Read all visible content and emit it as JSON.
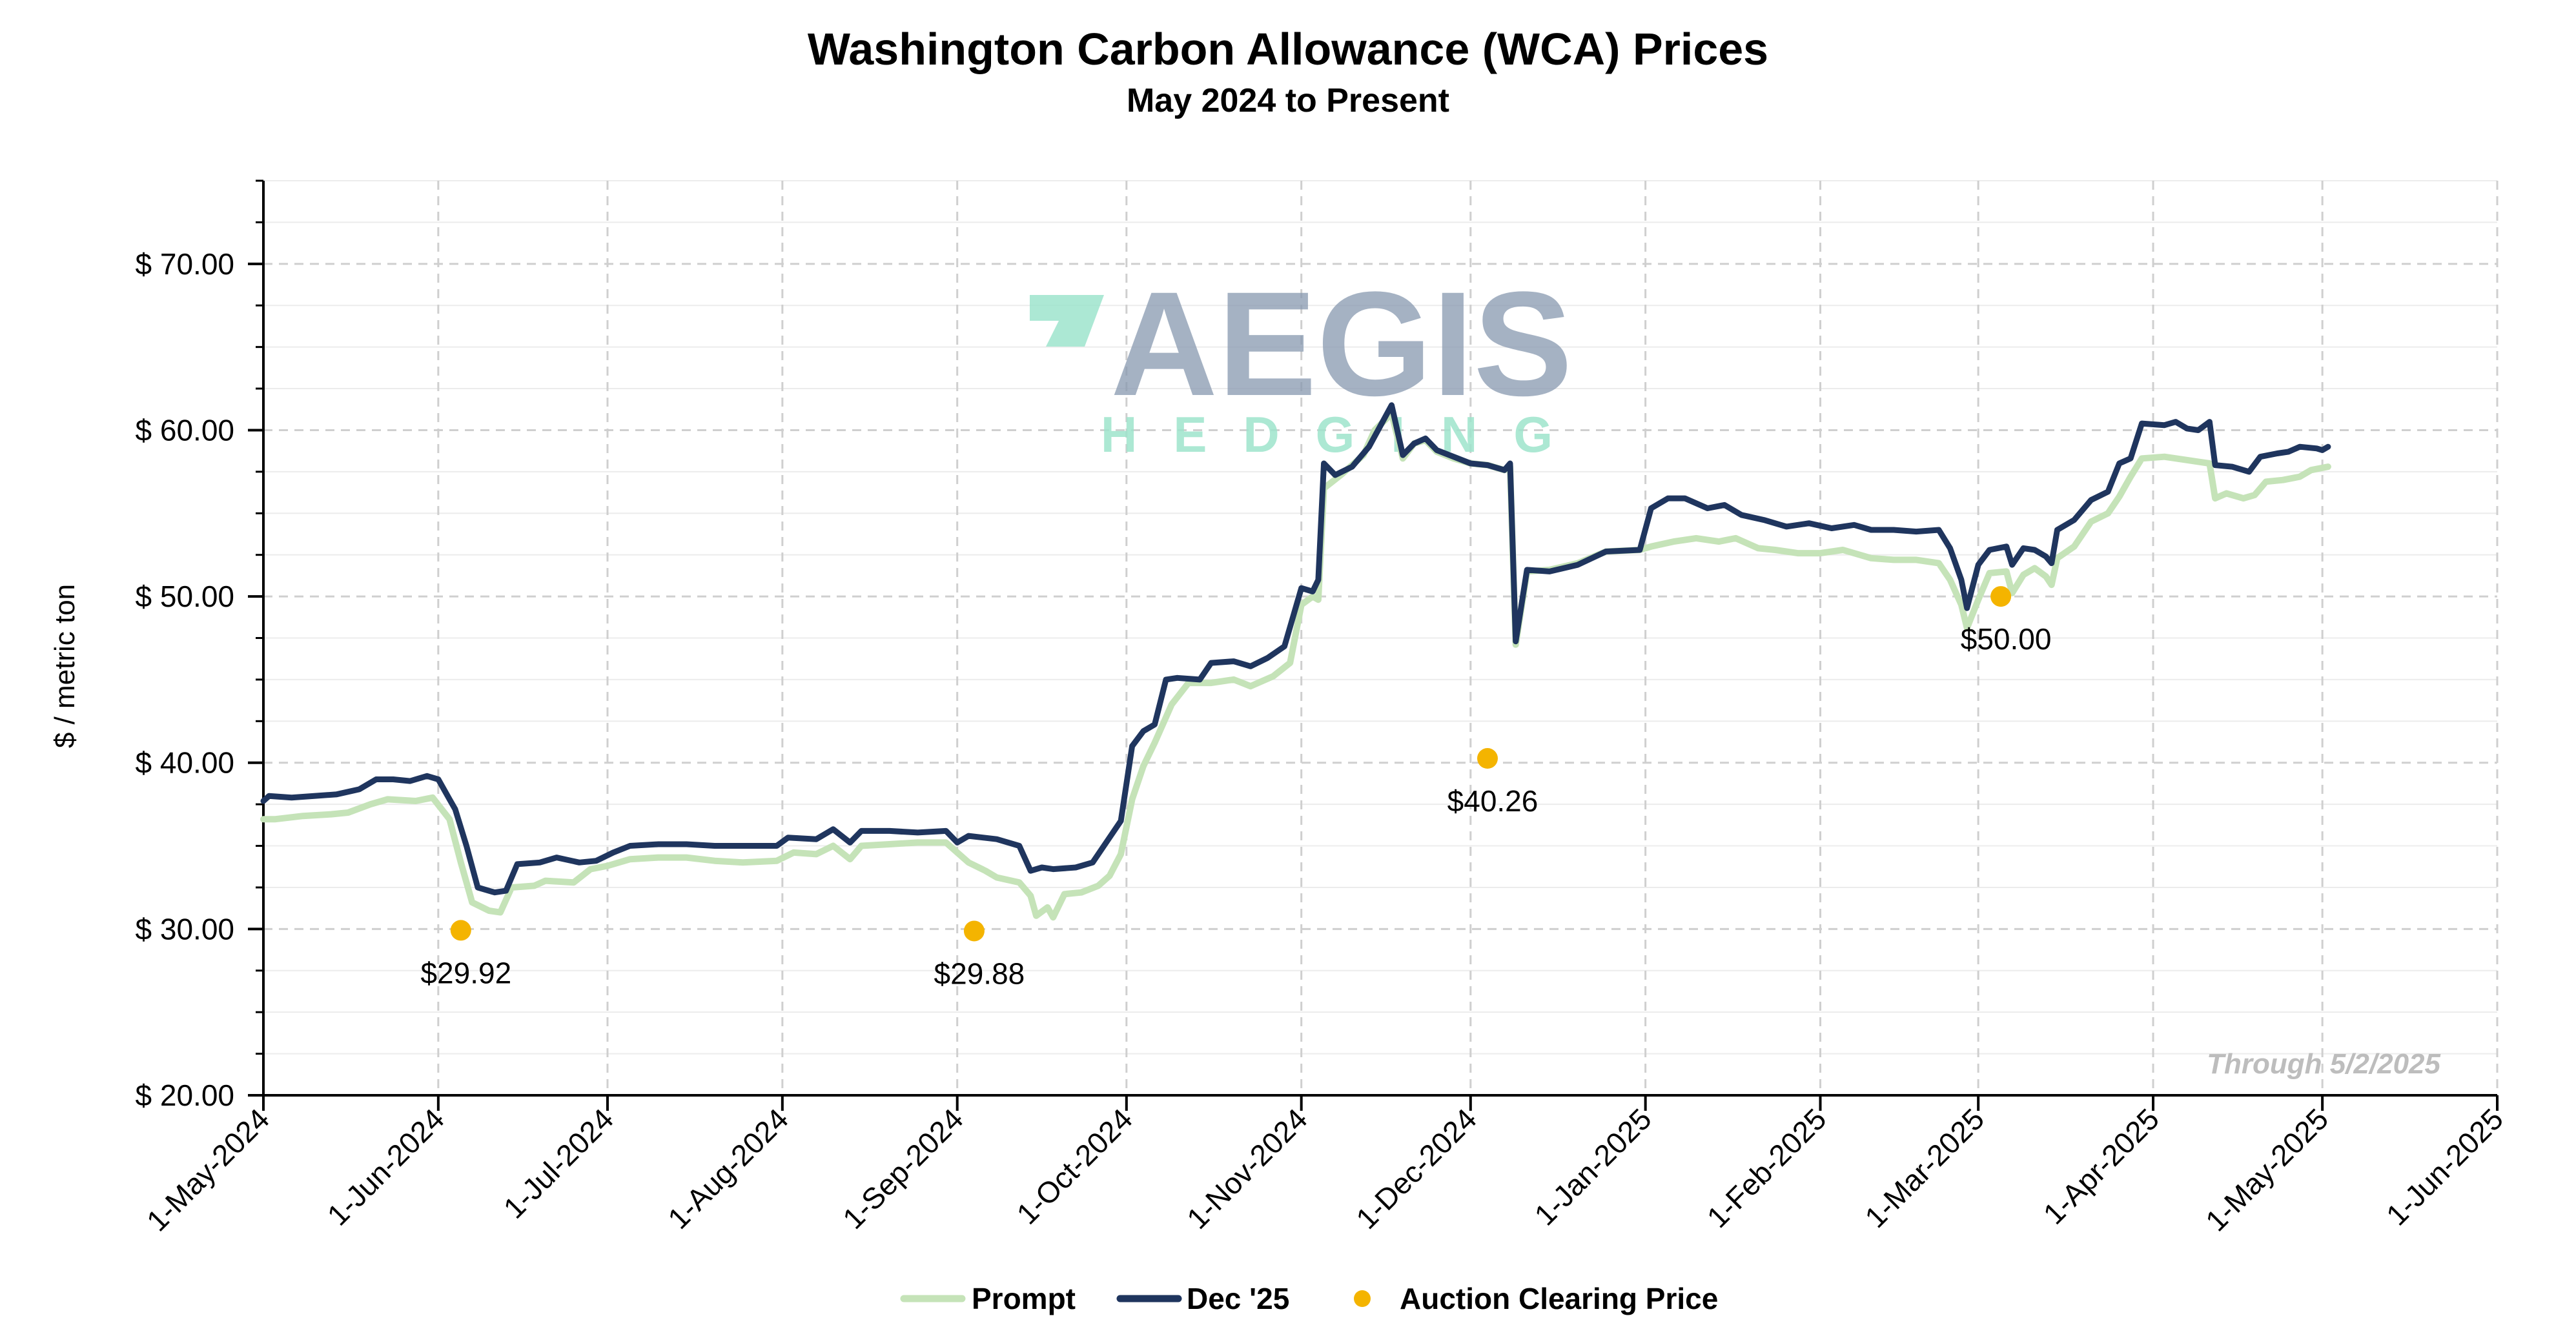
{
  "colors": {
    "prompt": "#c5e3b8",
    "dec25": "#1f355e",
    "auction": "#f4b400",
    "grid": "#d9d9d9",
    "watermark_text": "#8899b0",
    "watermark_accent": "#9ee4cc"
  },
  "watermark": {
    "line1": "AEGIS",
    "line2": "HEDGING"
  },
  "chart_data": {
    "type": "line",
    "title": "Washington Carbon Allowance (WCA) Prices",
    "subtitle": "May 2024 to Present",
    "ylabel": "$ / metric ton",
    "ylim": [
      20,
      75
    ],
    "xlim": [
      "2024-05-01",
      "2025-06-01"
    ],
    "grid": true,
    "legend_position": "bottom",
    "note": "Through 5/2/2025",
    "x_tick_labels": [
      "1-May-2024",
      "1-Jun-2024",
      "1-Jul-2024",
      "1-Aug-2024",
      "1-Sep-2024",
      "1-Oct-2024",
      "1-Nov-2024",
      "1-Dec-2024",
      "1-Jan-2025",
      "1-Feb-2025",
      "1-Mar-2025",
      "1-Apr-2025",
      "1-May-2025",
      "1-Jun-2025"
    ],
    "x_tick_dates": [
      "2024-05-01",
      "2024-06-01",
      "2024-07-01",
      "2024-08-01",
      "2024-09-01",
      "2024-10-01",
      "2024-11-01",
      "2024-12-01",
      "2025-01-01",
      "2025-02-01",
      "2025-03-01",
      "2025-04-01",
      "2025-05-01",
      "2025-06-01"
    ],
    "y_ticks": [
      20,
      30,
      40,
      50,
      60,
      70
    ],
    "y_tick_labels": [
      "$ 20.00",
      "$ 30.00",
      "$ 40.00",
      "$ 50.00",
      "$ 60.00",
      "$ 70.00"
    ],
    "series": [
      {
        "name": "Prompt",
        "points": [
          [
            "2024-05-01",
            36.6
          ],
          [
            "2024-05-03",
            36.6
          ],
          [
            "2024-05-08",
            36.8
          ],
          [
            "2024-05-13",
            36.9
          ],
          [
            "2024-05-16",
            37.0
          ],
          [
            "2024-05-20",
            37.5
          ],
          [
            "2024-05-23",
            37.8
          ],
          [
            "2024-05-28",
            37.7
          ],
          [
            "2024-05-31",
            37.9
          ],
          [
            "2024-06-03",
            36.6
          ],
          [
            "2024-06-05",
            34.0
          ],
          [
            "2024-06-07",
            31.6
          ],
          [
            "2024-06-10",
            31.1
          ],
          [
            "2024-06-12",
            31.0
          ],
          [
            "2024-06-14",
            32.5
          ],
          [
            "2024-06-18",
            32.6
          ],
          [
            "2024-06-20",
            32.9
          ],
          [
            "2024-06-25",
            32.8
          ],
          [
            "2024-06-28",
            33.6
          ],
          [
            "2024-07-01",
            33.8
          ],
          [
            "2024-07-05",
            34.2
          ],
          [
            "2024-07-10",
            34.3
          ],
          [
            "2024-07-15",
            34.3
          ],
          [
            "2024-07-20",
            34.1
          ],
          [
            "2024-07-25",
            34.0
          ],
          [
            "2024-07-31",
            34.1
          ],
          [
            "2024-08-03",
            34.6
          ],
          [
            "2024-08-07",
            34.5
          ],
          [
            "2024-08-10",
            35.0
          ],
          [
            "2024-08-13",
            34.2
          ],
          [
            "2024-08-15",
            35.0
          ],
          [
            "2024-08-20",
            35.1
          ],
          [
            "2024-08-25",
            35.2
          ],
          [
            "2024-08-30",
            35.2
          ],
          [
            "2024-09-01",
            34.6
          ],
          [
            "2024-09-03",
            34.0
          ],
          [
            "2024-09-06",
            33.5
          ],
          [
            "2024-09-08",
            33.1
          ],
          [
            "2024-09-12",
            32.8
          ],
          [
            "2024-09-14",
            32.0
          ],
          [
            "2024-09-15",
            30.8
          ],
          [
            "2024-09-17",
            31.3
          ],
          [
            "2024-09-18",
            30.7
          ],
          [
            "2024-09-20",
            32.1
          ],
          [
            "2024-09-23",
            32.2
          ],
          [
            "2024-09-26",
            32.6
          ],
          [
            "2024-09-28",
            33.2
          ],
          [
            "2024-09-30",
            34.5
          ],
          [
            "2024-10-02",
            37.8
          ],
          [
            "2024-10-04",
            39.8
          ],
          [
            "2024-10-06",
            41.2
          ],
          [
            "2024-10-09",
            43.5
          ],
          [
            "2024-10-12",
            44.8
          ],
          [
            "2024-10-16",
            44.8
          ],
          [
            "2024-10-20",
            45.0
          ],
          [
            "2024-10-23",
            44.6
          ],
          [
            "2024-10-27",
            45.2
          ],
          [
            "2024-10-30",
            46.0
          ],
          [
            "2024-11-01",
            49.5
          ],
          [
            "2024-11-03",
            50.0
          ],
          [
            "2024-11-04",
            49.8
          ],
          [
            "2024-11-05",
            56.5
          ],
          [
            "2024-11-08",
            57.3
          ],
          [
            "2024-11-12",
            58.5
          ],
          [
            "2024-11-14",
            60.0
          ],
          [
            "2024-11-17",
            61.0
          ],
          [
            "2024-11-19",
            58.3
          ],
          [
            "2024-11-21",
            59.2
          ],
          [
            "2024-11-23",
            59.4
          ],
          [
            "2024-11-25",
            58.7
          ],
          [
            "2024-11-28",
            58.3
          ],
          [
            "2024-12-01",
            58.0
          ],
          [
            "2024-12-04",
            57.9
          ],
          [
            "2024-12-07",
            57.6
          ],
          [
            "2024-12-08",
            57.8
          ],
          [
            "2024-12-09",
            47.1
          ],
          [
            "2024-12-11",
            51.5
          ],
          [
            "2024-12-15",
            51.6
          ],
          [
            "2024-12-20",
            52.0
          ],
          [
            "2024-12-25",
            52.7
          ],
          [
            "2024-12-31",
            52.8
          ],
          [
            "2025-01-02",
            53.0
          ],
          [
            "2025-01-06",
            53.3
          ],
          [
            "2025-01-10",
            53.5
          ],
          [
            "2025-01-14",
            53.3
          ],
          [
            "2025-01-17",
            53.5
          ],
          [
            "2025-01-21",
            52.9
          ],
          [
            "2025-01-24",
            52.8
          ],
          [
            "2025-01-28",
            52.6
          ],
          [
            "2025-02-01",
            52.6
          ],
          [
            "2025-02-05",
            52.8
          ],
          [
            "2025-02-10",
            52.3
          ],
          [
            "2025-02-14",
            52.2
          ],
          [
            "2025-02-18",
            52.2
          ],
          [
            "2025-02-22",
            52.0
          ],
          [
            "2025-02-24",
            51.0
          ],
          [
            "2025-02-26",
            49.5
          ],
          [
            "2025-02-27",
            48.1
          ],
          [
            "2025-03-01",
            49.8
          ],
          [
            "2025-03-03",
            51.4
          ],
          [
            "2025-03-06",
            51.5
          ],
          [
            "2025-03-07",
            50.2
          ],
          [
            "2025-03-09",
            51.3
          ],
          [
            "2025-03-11",
            51.7
          ],
          [
            "2025-03-13",
            51.2
          ],
          [
            "2025-03-14",
            50.7
          ],
          [
            "2025-03-15",
            52.3
          ],
          [
            "2025-03-18",
            53.0
          ],
          [
            "2025-03-21",
            54.5
          ],
          [
            "2025-03-24",
            55.0
          ],
          [
            "2025-03-26",
            56.0
          ],
          [
            "2025-03-28",
            57.2
          ],
          [
            "2025-03-30",
            58.3
          ],
          [
            "2025-04-03",
            58.4
          ],
          [
            "2025-04-07",
            58.2
          ],
          [
            "2025-04-09",
            58.1
          ],
          [
            "2025-04-11",
            58.0
          ],
          [
            "2025-04-12",
            55.9
          ],
          [
            "2025-04-14",
            56.2
          ],
          [
            "2025-04-17",
            55.9
          ],
          [
            "2025-04-19",
            56.1
          ],
          [
            "2025-04-21",
            56.9
          ],
          [
            "2025-04-24",
            57.0
          ],
          [
            "2025-04-27",
            57.2
          ],
          [
            "2025-04-29",
            57.6
          ],
          [
            "2025-05-02",
            57.8
          ]
        ]
      },
      {
        "name": "Dec '25",
        "points": [
          [
            "2024-05-01",
            37.7
          ],
          [
            "2024-05-02",
            38.0
          ],
          [
            "2024-05-06",
            37.9
          ],
          [
            "2024-05-10",
            38.0
          ],
          [
            "2024-05-14",
            38.1
          ],
          [
            "2024-05-18",
            38.4
          ],
          [
            "2024-05-21",
            39.0
          ],
          [
            "2024-05-24",
            39.0
          ],
          [
            "2024-05-27",
            38.9
          ],
          [
            "2024-05-30",
            39.2
          ],
          [
            "2024-06-01",
            39.0
          ],
          [
            "2024-06-03",
            37.8
          ],
          [
            "2024-06-04",
            37.2
          ],
          [
            "2024-06-06",
            35.0
          ],
          [
            "2024-06-08",
            32.5
          ],
          [
            "2024-06-11",
            32.2
          ],
          [
            "2024-06-13",
            32.3
          ],
          [
            "2024-06-15",
            33.9
          ],
          [
            "2024-06-19",
            34.0
          ],
          [
            "2024-06-22",
            34.3
          ],
          [
            "2024-06-26",
            34.0
          ],
          [
            "2024-06-29",
            34.1
          ],
          [
            "2024-07-02",
            34.6
          ],
          [
            "2024-07-05",
            35.0
          ],
          [
            "2024-07-10",
            35.1
          ],
          [
            "2024-07-15",
            35.1
          ],
          [
            "2024-07-20",
            35.0
          ],
          [
            "2024-07-25",
            35.0
          ],
          [
            "2024-07-31",
            35.0
          ],
          [
            "2024-08-02",
            35.5
          ],
          [
            "2024-08-07",
            35.4
          ],
          [
            "2024-08-10",
            36.0
          ],
          [
            "2024-08-13",
            35.2
          ],
          [
            "2024-08-15",
            35.9
          ],
          [
            "2024-08-20",
            35.9
          ],
          [
            "2024-08-25",
            35.8
          ],
          [
            "2024-08-30",
            35.9
          ],
          [
            "2024-09-01",
            35.2
          ],
          [
            "2024-09-03",
            35.6
          ],
          [
            "2024-09-08",
            35.4
          ],
          [
            "2024-09-12",
            35.0
          ],
          [
            "2024-09-14",
            33.5
          ],
          [
            "2024-09-16",
            33.7
          ],
          [
            "2024-09-18",
            33.6
          ],
          [
            "2024-09-22",
            33.7
          ],
          [
            "2024-09-25",
            34.0
          ],
          [
            "2024-09-27",
            35.0
          ],
          [
            "2024-09-30",
            36.5
          ],
          [
            "2024-10-02",
            41.0
          ],
          [
            "2024-10-04",
            41.9
          ],
          [
            "2024-10-06",
            42.3
          ],
          [
            "2024-10-08",
            45.0
          ],
          [
            "2024-10-10",
            45.1
          ],
          [
            "2024-10-14",
            45.0
          ],
          [
            "2024-10-16",
            46.0
          ],
          [
            "2024-10-20",
            46.1
          ],
          [
            "2024-10-23",
            45.8
          ],
          [
            "2024-10-26",
            46.3
          ],
          [
            "2024-10-29",
            47.0
          ],
          [
            "2024-11-01",
            50.5
          ],
          [
            "2024-11-03",
            50.3
          ],
          [
            "2024-11-04",
            51.0
          ],
          [
            "2024-11-05",
            58.0
          ],
          [
            "2024-11-07",
            57.3
          ],
          [
            "2024-11-10",
            57.8
          ],
          [
            "2024-11-13",
            59.0
          ],
          [
            "2024-11-17",
            61.5
          ],
          [
            "2024-11-19",
            58.5
          ],
          [
            "2024-11-21",
            59.2
          ],
          [
            "2024-11-23",
            59.5
          ],
          [
            "2024-11-25",
            58.8
          ],
          [
            "2024-11-28",
            58.4
          ],
          [
            "2024-12-01",
            58.0
          ],
          [
            "2024-12-04",
            57.9
          ],
          [
            "2024-12-07",
            57.6
          ],
          [
            "2024-12-08",
            58.0
          ],
          [
            "2024-12-09",
            47.3
          ],
          [
            "2024-12-11",
            51.6
          ],
          [
            "2024-12-15",
            51.5
          ],
          [
            "2024-12-20",
            51.9
          ],
          [
            "2024-12-25",
            52.7
          ],
          [
            "2024-12-31",
            52.8
          ],
          [
            "2025-01-02",
            55.3
          ],
          [
            "2025-01-05",
            55.9
          ],
          [
            "2025-01-08",
            55.9
          ],
          [
            "2025-01-12",
            55.3
          ],
          [
            "2025-01-15",
            55.5
          ],
          [
            "2025-01-18",
            54.9
          ],
          [
            "2025-01-22",
            54.6
          ],
          [
            "2025-01-26",
            54.2
          ],
          [
            "2025-01-30",
            54.4
          ],
          [
            "2025-02-03",
            54.1
          ],
          [
            "2025-02-07",
            54.3
          ],
          [
            "2025-02-10",
            54.0
          ],
          [
            "2025-02-14",
            54.0
          ],
          [
            "2025-02-18",
            53.9
          ],
          [
            "2025-02-22",
            54.0
          ],
          [
            "2025-02-24",
            52.9
          ],
          [
            "2025-02-26",
            51.0
          ],
          [
            "2025-02-27",
            49.3
          ],
          [
            "2025-03-01",
            51.9
          ],
          [
            "2025-03-03",
            52.8
          ],
          [
            "2025-03-06",
            53.0
          ],
          [
            "2025-03-07",
            51.9
          ],
          [
            "2025-03-09",
            52.9
          ],
          [
            "2025-03-11",
            52.8
          ],
          [
            "2025-03-13",
            52.4
          ],
          [
            "2025-03-14",
            52.0
          ],
          [
            "2025-03-15",
            54.0
          ],
          [
            "2025-03-18",
            54.6
          ],
          [
            "2025-03-21",
            55.8
          ],
          [
            "2025-03-24",
            56.3
          ],
          [
            "2025-03-26",
            58.0
          ],
          [
            "2025-03-28",
            58.3
          ],
          [
            "2025-03-30",
            60.4
          ],
          [
            "2025-04-03",
            60.3
          ],
          [
            "2025-04-05",
            60.5
          ],
          [
            "2025-04-07",
            60.1
          ],
          [
            "2025-04-09",
            60.0
          ],
          [
            "2025-04-11",
            60.5
          ],
          [
            "2025-04-12",
            57.9
          ],
          [
            "2025-04-15",
            57.8
          ],
          [
            "2025-04-18",
            57.5
          ],
          [
            "2025-04-20",
            58.4
          ],
          [
            "2025-04-23",
            58.6
          ],
          [
            "2025-04-25",
            58.7
          ],
          [
            "2025-04-27",
            59.0
          ],
          [
            "2025-04-30",
            58.9
          ],
          [
            "2025-05-01",
            58.8
          ],
          [
            "2025-05-02",
            59.0
          ]
        ]
      }
    ],
    "auction": {
      "name": "Auction Clearing Price",
      "points": [
        {
          "x": "2024-06-05",
          "y": 29.92,
          "label": "$29.92"
        },
        {
          "x": "2024-09-04",
          "y": 29.88,
          "label": "$29.88"
        },
        {
          "x": "2024-12-04",
          "y": 40.26,
          "label": "$40.26"
        },
        {
          "x": "2025-03-05",
          "y": 50.0,
          "label": "$50.00"
        }
      ]
    }
  }
}
